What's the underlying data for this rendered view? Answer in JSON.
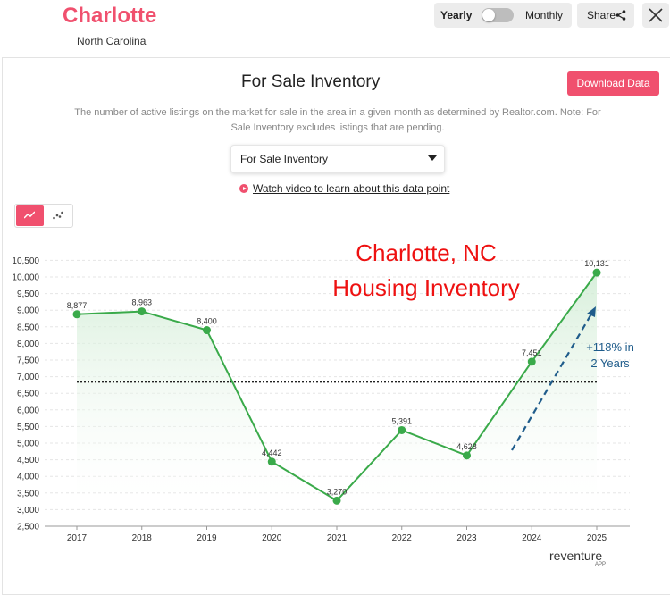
{
  "header": {
    "city": "Charlotte",
    "state": "North Carolina",
    "toggle": {
      "left_label": "Yearly",
      "right_label": "Monthly"
    },
    "share_label": "Share"
  },
  "card": {
    "title": "For Sale Inventory",
    "download_label": "Download Data",
    "description": "The number of active listings on the market for sale in the area in a given month as determined by Realtor.com. Note: For Sale Inventory excludes listings that are pending.",
    "select_value": "For Sale Inventory",
    "video_link": "Watch video to learn about this data point"
  },
  "annotation": {
    "line1": "Charlotte, NC",
    "line2": "Housing Inventory",
    "growth_line1": "+118% in",
    "growth_line2": "2 Years"
  },
  "brand": {
    "name": "reventure",
    "sub": "APP"
  },
  "colors": {
    "accent": "#f0506e",
    "line": "#3aaa4a",
    "annotation": "#ee1111",
    "arrow": "#1f5c8b"
  },
  "chart_data": {
    "type": "line",
    "title": "For Sale Inventory",
    "categories": [
      "2017",
      "2018",
      "2019",
      "2020",
      "2021",
      "2022",
      "2023",
      "2024",
      "2025"
    ],
    "values": [
      8877,
      8963,
      8400,
      4442,
      3270,
      5391,
      4628,
      7451,
      10131
    ],
    "value_labels": [
      "8,877",
      "8,963",
      "8,400",
      "4,442",
      "3,270",
      "5,391",
      "4,628",
      "7,451",
      "10,131"
    ],
    "yticks": [
      2500,
      3000,
      3500,
      4000,
      4500,
      5000,
      5500,
      6000,
      6500,
      7000,
      7500,
      8000,
      8500,
      9000,
      9500,
      10000,
      10500
    ],
    "ytick_labels": [
      "2,500",
      "3,000",
      "3,500",
      "4,000",
      "4,500",
      "5,000",
      "5,500",
      "6,000",
      "6,500",
      "7,000",
      "7,500",
      "8,000",
      "8,500",
      "9,000",
      "9,500",
      "10,000",
      "10,500"
    ],
    "ylim": [
      2500,
      10500
    ],
    "average_line": 6840,
    "grid": true,
    "xlabel": "",
    "ylabel": ""
  }
}
